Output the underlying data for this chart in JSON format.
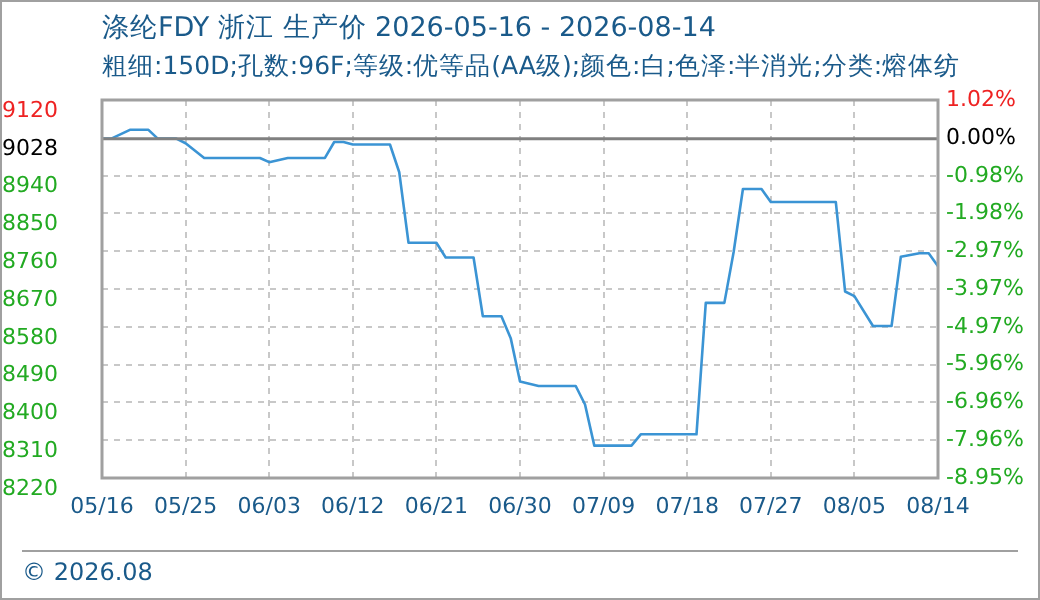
{
  "chart_data": {
    "type": "line",
    "title": "涤纶FDY 浙江 生产价 2026-05-16 - 2026-08-14",
    "subtitle": "粗细:150D;孔数:96F;等级:优等品(AA级);颜色:白;色泽:半消光;分类:熔体纺",
    "annotations": [
      "© 2026.08"
    ],
    "x": [
      "--05-16",
      "--05-17",
      "--05-19",
      "--05-21",
      "--05-22",
      "--05-24",
      "--05-25",
      "--05-27",
      "--06-02",
      "--06-03",
      "--06-05",
      "--06-09",
      "--06-10",
      "--06-11",
      "--06-12",
      "--06-16",
      "--06-17",
      "--06-18",
      "--06-21",
      "--06-22",
      "--06-25",
      "--06-26",
      "--06-28",
      "--06-29",
      "--06-30",
      "--07-02",
      "--07-06",
      "--07-07",
      "--07-08",
      "--07-12",
      "--07-13",
      "--07-19",
      "--07-20",
      "--07-22",
      "--07-23",
      "--07-24",
      "--07-26",
      "--07-27",
      "--08-03",
      "--08-04",
      "--08-05",
      "--08-07",
      "--08-09",
      "--08-10",
      "--08-12",
      "--08-13",
      "--08-14"
    ],
    "series": [
      {
        "color": "#3b94d4",
        "values": [
          9028,
          9028,
          9049,
          9049,
          9028,
          9028,
          9017,
          8982,
          8982,
          8972,
          8982,
          8982,
          9020,
          9020,
          9014,
          9014,
          8948,
          8780,
          8780,
          8745,
          8745,
          8605,
          8605,
          8553,
          8450,
          8439,
          8439,
          8395,
          8297,
          8297,
          8324,
          8324,
          8637,
          8637,
          8758,
          8908,
          8908,
          8877,
          8877,
          8664,
          8653,
          8582,
          8582,
          8747,
          8755,
          8755,
          8724
        ]
      }
    ],
    "xlim": [
      "--05-16",
      "--08-14"
    ],
    "xticks": [
      {
        "value": "--05-16",
        "label": "05/16"
      },
      {
        "value": "--05-25",
        "label": "05/25"
      },
      {
        "value": "--06-03",
        "label": "06/03"
      },
      {
        "value": "--06-12",
        "label": "06/12"
      },
      {
        "value": "--06-21",
        "label": "06/21"
      },
      {
        "value": "--06-30",
        "label": "06/30"
      },
      {
        "value": "--07-09",
        "label": "07/09"
      },
      {
        "value": "--07-18",
        "label": "07/18"
      },
      {
        "value": "--07-27",
        "label": "07/27"
      },
      {
        "value": "--08-05",
        "label": "08/05"
      },
      {
        "value": "--08-14",
        "label": "08/14"
      }
    ],
    "ylim": [
      8220,
      9120
    ],
    "yticks": [
      9120,
      9028,
      8940,
      8850,
      8760,
      8670,
      8580,
      8490,
      8400,
      8310,
      8220
    ],
    "y2lim": [
      -8.95,
      1.02
    ],
    "y2ticks": [
      {
        "value": 1.02,
        "label": "1.02%"
      },
      {
        "value": 0,
        "label": "0.00%"
      },
      {
        "value": -0.98,
        "label": "-0.98%"
      },
      {
        "value": -1.98,
        "label": "-1.98%"
      },
      {
        "value": -2.97,
        "label": "-2.97%"
      },
      {
        "value": -3.97,
        "label": "-3.97%"
      },
      {
        "value": -4.97,
        "label": "-4.97%"
      },
      {
        "value": -5.96,
        "label": "-5.96%"
      },
      {
        "value": -6.96,
        "label": "-6.96%"
      },
      {
        "value": -7.96,
        "label": "-7.96%"
      },
      {
        "value": -8.95,
        "label": "-8.95%"
      }
    ],
    "ref_lines": [
      {
        "axis": "y",
        "value": 9028,
        "color": "#808080"
      }
    ],
    "grid": true,
    "legend": false,
    "marker": "none",
    "line_style": "solid"
  }
}
